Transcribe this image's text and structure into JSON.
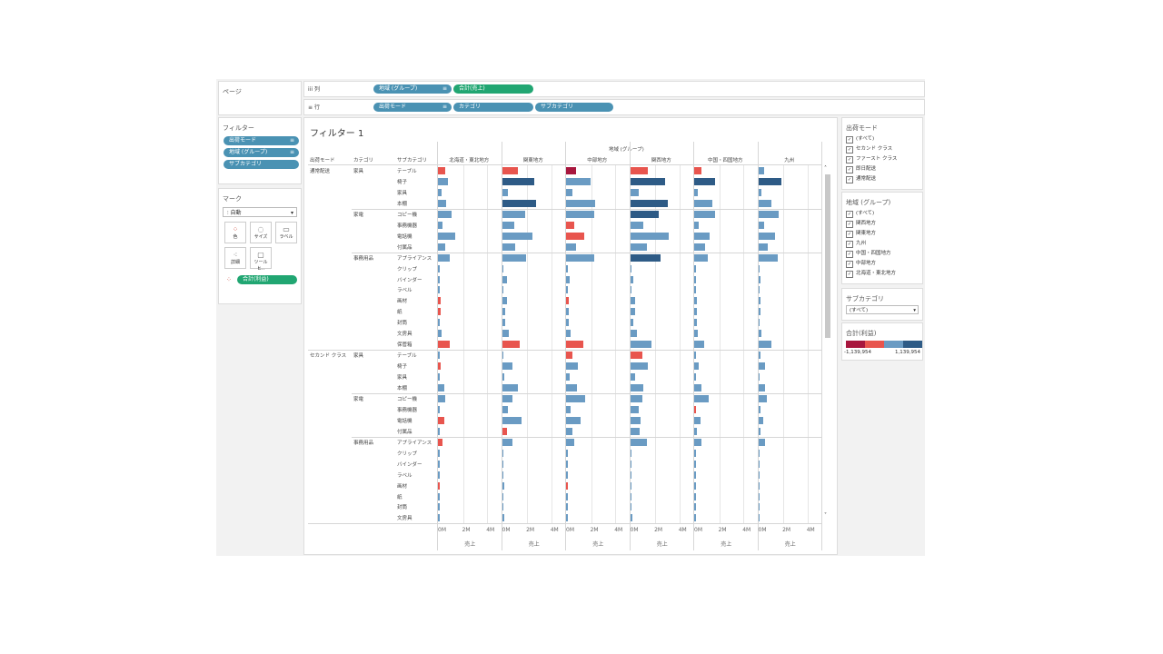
{
  "left": {
    "pages_title": "ページ",
    "filters_title": "フィルター",
    "filters": [
      "出荷モード",
      "地域 (グループ)",
      "サブカテゴリ"
    ],
    "marks_title": "マーク",
    "mark_type": "自動",
    "mark_buttons": [
      {
        "label": "色",
        "icon": "color-icon"
      },
      {
        "label": "サイズ",
        "icon": "size-icon"
      },
      {
        "label": "ラベル",
        "icon": "label-icon"
      },
      {
        "label": "詳細",
        "icon": "detail-icon"
      },
      {
        "label": "ツールヒ..",
        "icon": "tooltip-icon"
      }
    ],
    "color_pill": "合計(利益)"
  },
  "shelves": {
    "columns_label": "列",
    "rows_label": "行",
    "columns": [
      "地域 (グループ)",
      "合計(売上)"
    ],
    "rows": [
      "出荷モード",
      "カテゴリ",
      "サブカテゴリ"
    ]
  },
  "viz": {
    "title": "フィルター 1",
    "col_group_header": "地域 (グループ)",
    "row_headers": [
      "出荷モード",
      "カテゴリ",
      "サブカテゴリ"
    ],
    "regions": [
      "北海道・東北地方",
      "関東地方",
      "中部地方",
      "関西地方",
      "中国・四国地方",
      "九州"
    ],
    "axis_ticks": [
      "0M",
      "2M",
      "4M"
    ],
    "axis_title": "売上",
    "sections": [
      {
        "mode": "通常配送",
        "categories": [
          {
            "name": "家具",
            "subs": [
              "テーブル",
              "椅子",
              "家具",
              "本棚"
            ]
          },
          {
            "name": "家電",
            "subs": [
              "コピー機",
              "事務機器",
              "電話機",
              "付属品"
            ]
          },
          {
            "name": "事務用品",
            "subs": [
              "アプライアンス",
              "クリップ",
              "バインダー",
              "ラベル",
              "画材",
              "紙",
              "封筒",
              "文房具",
              "保管箱"
            ]
          }
        ]
      },
      {
        "mode": "セカンド クラス",
        "categories": [
          {
            "name": "家具",
            "subs": [
              "テーブル",
              "椅子",
              "家具",
              "本棚"
            ]
          },
          {
            "name": "家電",
            "subs": [
              "コピー機",
              "事務機器",
              "電話機",
              "付属品"
            ]
          },
          {
            "name": "事務用品",
            "subs": [
              "アプライアンス",
              "クリップ",
              "バインダー",
              "ラベル",
              "画材",
              "紙",
              "封筒",
              "文房具"
            ]
          }
        ]
      }
    ]
  },
  "colors": {
    "strong_negative": "#a8173e",
    "negative": "#e8554e",
    "light_positive": "#6a9bc3",
    "strong_positive": "#2e5b86"
  },
  "chart_data": {
    "type": "bar",
    "x_unit": "M",
    "xlim": [
      0,
      5
    ],
    "regions": [
      "北海道・東北地方",
      "関東地方",
      "中部地方",
      "関西地方",
      "中国・四国地方",
      "九州"
    ],
    "rows": [
      {
        "mode": "通常配送",
        "category": "家具",
        "sub": "テーブル",
        "values": [
          0.6,
          1.3,
          0.8,
          1.5,
          0.6,
          0.5
        ],
        "color": [
          "n",
          "n",
          "s",
          "n",
          "n",
          "p"
        ]
      },
      {
        "mode": "通常配送",
        "category": "家具",
        "sub": "椅子",
        "values": [
          0.8,
          2.7,
          2.0,
          2.9,
          1.7,
          1.9
        ],
        "color": [
          "p",
          "d",
          "p",
          "d",
          "d",
          "d"
        ]
      },
      {
        "mode": "通常配送",
        "category": "家具",
        "sub": "家具",
        "values": [
          0.3,
          0.5,
          0.5,
          0.7,
          0.3,
          0.3
        ],
        "color": [
          "p",
          "p",
          "p",
          "p",
          "p",
          "p"
        ]
      },
      {
        "mode": "通常配送",
        "category": "家具",
        "sub": "本棚",
        "values": [
          0.7,
          2.8,
          2.4,
          3.1,
          1.5,
          1.1
        ],
        "color": [
          "p",
          "d",
          "p",
          "d",
          "p",
          "p"
        ]
      },
      {
        "mode": "通常配送",
        "category": "家電",
        "sub": "コピー機",
        "values": [
          1.1,
          1.9,
          2.3,
          2.4,
          1.7,
          1.7
        ],
        "color": [
          "p",
          "p",
          "p",
          "d",
          "p",
          "p"
        ]
      },
      {
        "mode": "通常配送",
        "category": "家電",
        "sub": "事務機器",
        "values": [
          0.4,
          1.0,
          0.7,
          1.1,
          0.4,
          0.5
        ],
        "color": [
          "p",
          "p",
          "n",
          "p",
          "p",
          "p"
        ]
      },
      {
        "mode": "通常配送",
        "category": "家電",
        "sub": "電話機",
        "values": [
          1.4,
          2.5,
          1.5,
          3.2,
          1.3,
          1.4
        ],
        "color": [
          "p",
          "p",
          "n",
          "p",
          "p",
          "p"
        ]
      },
      {
        "mode": "通常配送",
        "category": "家電",
        "sub": "付属品",
        "values": [
          0.6,
          1.1,
          0.8,
          1.4,
          0.9,
          0.8
        ],
        "color": [
          "p",
          "p",
          "p",
          "p",
          "p",
          "p"
        ]
      },
      {
        "mode": "通常配送",
        "category": "事務用品",
        "sub": "アプライアンス",
        "values": [
          1.0,
          2.0,
          2.3,
          2.5,
          1.1,
          1.6
        ],
        "color": [
          "p",
          "p",
          "p",
          "d",
          "p",
          "p"
        ]
      },
      {
        "mode": "通常配送",
        "category": "事務用品",
        "sub": "クリップ",
        "values": [
          0.1,
          0.1,
          0.1,
          0.1,
          0.1,
          0.1
        ],
        "color": [
          "p",
          "p",
          "p",
          "p",
          "p",
          "p"
        ]
      },
      {
        "mode": "通常配送",
        "category": "事務用品",
        "sub": "バインダー",
        "values": [
          0.1,
          0.4,
          0.3,
          0.3,
          0.1,
          0.2
        ],
        "color": [
          "p",
          "p",
          "p",
          "p",
          "p",
          "p"
        ]
      },
      {
        "mode": "通常配送",
        "category": "事務用品",
        "sub": "ラベル",
        "values": [
          0.05,
          0.1,
          0.05,
          0.1,
          0.05,
          0.05
        ],
        "color": [
          "p",
          "p",
          "p",
          "p",
          "p",
          "p"
        ]
      },
      {
        "mode": "通常配送",
        "category": "事務用品",
        "sub": "画材",
        "values": [
          0.2,
          0.4,
          0.2,
          0.4,
          0.2,
          0.2
        ],
        "color": [
          "n",
          "p",
          "n",
          "p",
          "p",
          "p"
        ]
      },
      {
        "mode": "通常配送",
        "category": "事務用品",
        "sub": "紙",
        "values": [
          0.2,
          0.3,
          0.2,
          0.4,
          0.2,
          0.2
        ],
        "color": [
          "n",
          "p",
          "p",
          "p",
          "p",
          "p"
        ]
      },
      {
        "mode": "通常配送",
        "category": "事務用品",
        "sub": "封筒",
        "values": [
          0.1,
          0.3,
          0.2,
          0.3,
          0.2,
          0.1
        ],
        "color": [
          "p",
          "p",
          "p",
          "p",
          "p",
          "p"
        ]
      },
      {
        "mode": "通常配送",
        "category": "事務用品",
        "sub": "文房具",
        "values": [
          0.3,
          0.6,
          0.4,
          0.6,
          0.3,
          0.3
        ],
        "color": [
          "p",
          "p",
          "p",
          "p",
          "p",
          "p"
        ]
      },
      {
        "mode": "通常配送",
        "category": "事務用品",
        "sub": "保管箱",
        "values": [
          1.0,
          1.5,
          1.4,
          1.8,
          0.8,
          1.1
        ],
        "color": [
          "n",
          "n",
          "n",
          "p",
          "p",
          "p"
        ]
      },
      {
        "mode": "セカンド クラス",
        "category": "家具",
        "sub": "テーブル",
        "values": [
          0.1,
          0.1,
          0.5,
          1.0,
          0.1,
          0.2
        ],
        "color": [
          "p",
          "p",
          "n",
          "n",
          "p",
          "p"
        ]
      },
      {
        "mode": "セカンド クラス",
        "category": "家具",
        "sub": "椅子",
        "values": [
          0.2,
          0.9,
          1.0,
          1.5,
          0.4,
          0.6
        ],
        "color": [
          "n",
          "p",
          "p",
          "p",
          "p",
          "p"
        ]
      },
      {
        "mode": "セカンド クラス",
        "category": "家具",
        "sub": "家具",
        "values": [
          0.1,
          0.2,
          0.3,
          0.4,
          0.1,
          0.1
        ],
        "color": [
          "p",
          "p",
          "p",
          "p",
          "p",
          "p"
        ]
      },
      {
        "mode": "セカンド クラス",
        "category": "家具",
        "sub": "本棚",
        "values": [
          0.5,
          1.3,
          0.9,
          1.1,
          0.6,
          0.6
        ],
        "color": [
          "p",
          "p",
          "p",
          "p",
          "p",
          "p"
        ]
      },
      {
        "mode": "セカンド クラス",
        "category": "家電",
        "sub": "コピー機",
        "values": [
          0.6,
          0.9,
          1.6,
          1.0,
          1.2,
          0.7
        ],
        "color": [
          "p",
          "p",
          "p",
          "p",
          "p",
          "p"
        ]
      },
      {
        "mode": "セカンド クラス",
        "category": "家電",
        "sub": "事務機器",
        "values": [
          0.1,
          0.5,
          0.4,
          0.7,
          0.1,
          0.2
        ],
        "color": [
          "p",
          "p",
          "p",
          "p",
          "n",
          "p"
        ]
      },
      {
        "mode": "セカンド クラス",
        "category": "家電",
        "sub": "電話機",
        "values": [
          0.5,
          1.6,
          1.2,
          0.9,
          0.5,
          0.4
        ],
        "color": [
          "n",
          "p",
          "p",
          "p",
          "p",
          "p"
        ]
      },
      {
        "mode": "セカンド クラス",
        "category": "家電",
        "sub": "付属品",
        "values": [
          0.1,
          0.4,
          0.5,
          0.8,
          0.2,
          0.2
        ],
        "color": [
          "p",
          "n",
          "p",
          "p",
          "p",
          "p"
        ]
      },
      {
        "mode": "セカンド クラス",
        "category": "事務用品",
        "sub": "アプライアンス",
        "values": [
          0.4,
          0.9,
          0.7,
          1.4,
          0.6,
          0.6
        ],
        "color": [
          "n",
          "p",
          "p",
          "p",
          "p",
          "p"
        ]
      },
      {
        "mode": "セカンド クラス",
        "category": "事務用品",
        "sub": "クリップ",
        "values": [
          0.02,
          0.05,
          0.05,
          0.05,
          0.02,
          0.02
        ],
        "color": [
          "p",
          "p",
          "p",
          "p",
          "p",
          "p"
        ]
      },
      {
        "mode": "セカンド クラス",
        "category": "事務用品",
        "sub": "バインダー",
        "values": [
          0.05,
          0.1,
          0.1,
          0.1,
          0.05,
          0.05
        ],
        "color": [
          "p",
          "p",
          "p",
          "p",
          "p",
          "p"
        ]
      },
      {
        "mode": "セカンド クラス",
        "category": "事務用品",
        "sub": "ラベル",
        "values": [
          0.02,
          0.02,
          0.02,
          0.02,
          0.02,
          0.02
        ],
        "color": [
          "p",
          "p",
          "p",
          "p",
          "p",
          "p"
        ]
      },
      {
        "mode": "セカンド クラス",
        "category": "事務用品",
        "sub": "画材",
        "values": [
          0.1,
          0.2,
          0.1,
          0.1,
          0.05,
          0.05
        ],
        "color": [
          "n",
          "p",
          "n",
          "p",
          "p",
          "p"
        ]
      },
      {
        "mode": "セカンド クラス",
        "category": "事務用品",
        "sub": "紙",
        "values": [
          0.05,
          0.1,
          0.1,
          0.1,
          0.05,
          0.05
        ],
        "color": [
          "p",
          "p",
          "p",
          "p",
          "p",
          "p"
        ]
      },
      {
        "mode": "セカンド クラス",
        "category": "事務用品",
        "sub": "封筒",
        "values": [
          0.05,
          0.1,
          0.1,
          0.1,
          0.05,
          0.05
        ],
        "color": [
          "p",
          "p",
          "p",
          "p",
          "p",
          "p"
        ]
      },
      {
        "mode": "セカンド クラス",
        "category": "事務用品",
        "sub": "文房具",
        "values": [
          0.1,
          0.2,
          0.1,
          0.2,
          0.05,
          0.05
        ],
        "color": [
          "p",
          "p",
          "p",
          "p",
          "p",
          "p"
        ]
      }
    ]
  },
  "right": {
    "ship_mode_title": "出荷モード",
    "ship_modes": [
      "(すべて)",
      "セカンド クラス",
      "ファースト クラス",
      "即日配送",
      "通常配送"
    ],
    "region_title": "地域 (グループ)",
    "region_items": [
      "(すべて)",
      "関西地方",
      "関東地方",
      "九州",
      "中国・四国地方",
      "中部地方",
      "北海道・東北地方"
    ],
    "subcat_title": "サブカテゴリ",
    "subcat_value": "(すべて)",
    "legend_title": "合計(利益)",
    "legend_min": "-1,139,954",
    "legend_max": "1,139,954"
  }
}
